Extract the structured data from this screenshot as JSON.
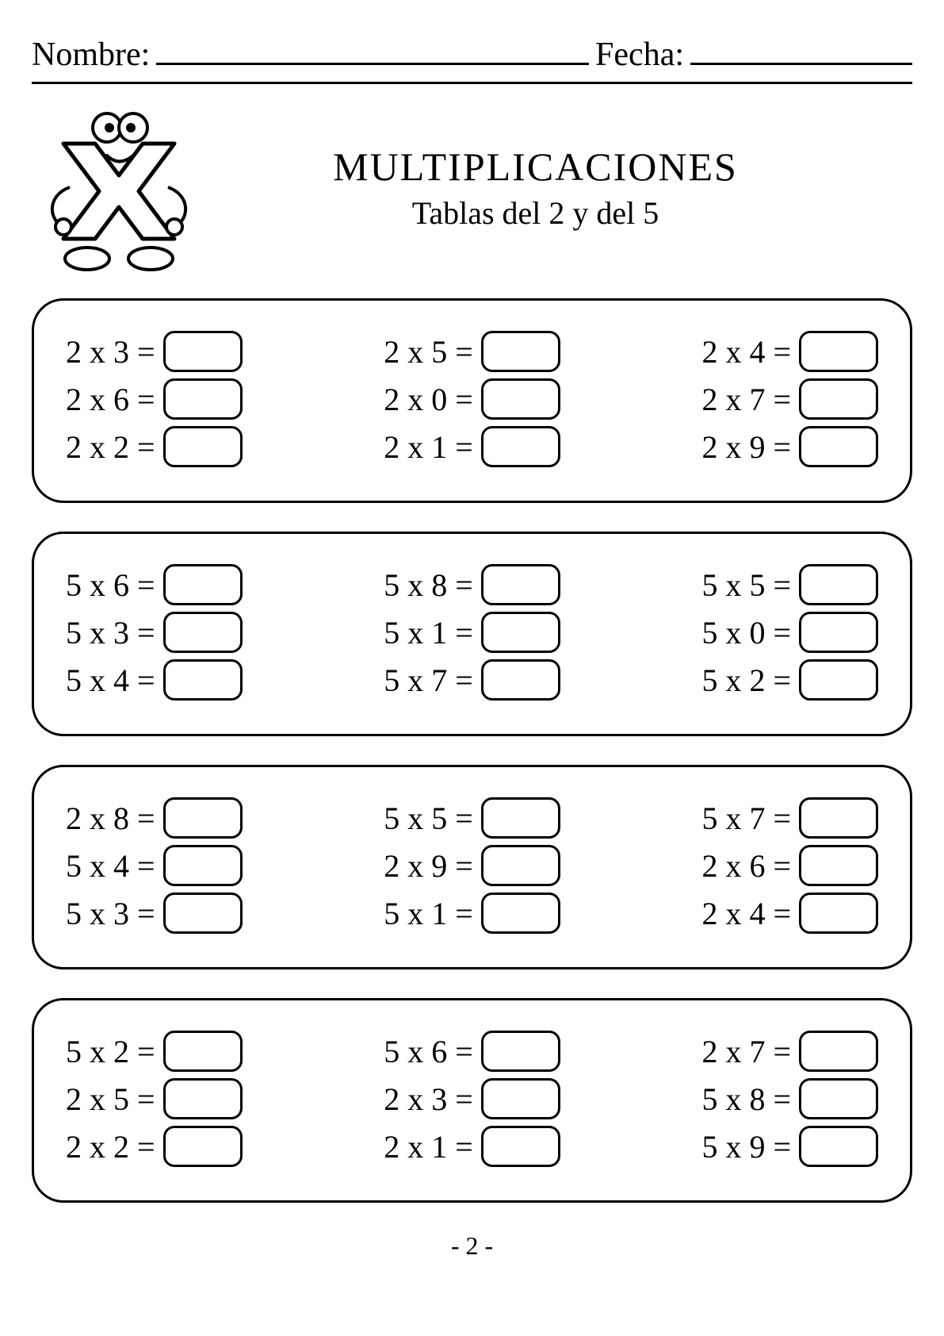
{
  "header": {
    "name_label": "Nombre:",
    "date_label": "Fecha:"
  },
  "title": {
    "main": "MULTIPLICACIONES",
    "sub": "Tablas del 2 y del 5"
  },
  "colors": {
    "text": "#000000",
    "background": "#ffffff",
    "border": "#000000"
  },
  "groups": [
    {
      "rows": [
        [
          {
            "a": 2,
            "b": 3
          },
          {
            "a": 2,
            "b": 5
          },
          {
            "a": 2,
            "b": 4
          }
        ],
        [
          {
            "a": 2,
            "b": 6
          },
          {
            "a": 2,
            "b": 0
          },
          {
            "a": 2,
            "b": 7
          }
        ],
        [
          {
            "a": 2,
            "b": 2
          },
          {
            "a": 2,
            "b": 1
          },
          {
            "a": 2,
            "b": 9
          }
        ]
      ]
    },
    {
      "rows": [
        [
          {
            "a": 5,
            "b": 6
          },
          {
            "a": 5,
            "b": 8
          },
          {
            "a": 5,
            "b": 5
          }
        ],
        [
          {
            "a": 5,
            "b": 3
          },
          {
            "a": 5,
            "b": 1
          },
          {
            "a": 5,
            "b": 0
          }
        ],
        [
          {
            "a": 5,
            "b": 4
          },
          {
            "a": 5,
            "b": 7
          },
          {
            "a": 5,
            "b": 2
          }
        ]
      ]
    },
    {
      "rows": [
        [
          {
            "a": 2,
            "b": 8
          },
          {
            "a": 5,
            "b": 5
          },
          {
            "a": 5,
            "b": 7
          }
        ],
        [
          {
            "a": 5,
            "b": 4
          },
          {
            "a": 2,
            "b": 9
          },
          {
            "a": 2,
            "b": 6
          }
        ],
        [
          {
            "a": 5,
            "b": 3
          },
          {
            "a": 5,
            "b": 1
          },
          {
            "a": 2,
            "b": 4
          }
        ]
      ]
    },
    {
      "rows": [
        [
          {
            "a": 5,
            "b": 2
          },
          {
            "a": 5,
            "b": 6
          },
          {
            "a": 2,
            "b": 7
          }
        ],
        [
          {
            "a": 2,
            "b": 5
          },
          {
            "a": 2,
            "b": 3
          },
          {
            "a": 5,
            "b": 8
          }
        ],
        [
          {
            "a": 2,
            "b": 2
          },
          {
            "a": 2,
            "b": 1
          },
          {
            "a": 5,
            "b": 9
          }
        ]
      ]
    }
  ],
  "page_number": "- 2 -",
  "operator_symbol": "x",
  "equals_symbol": "="
}
